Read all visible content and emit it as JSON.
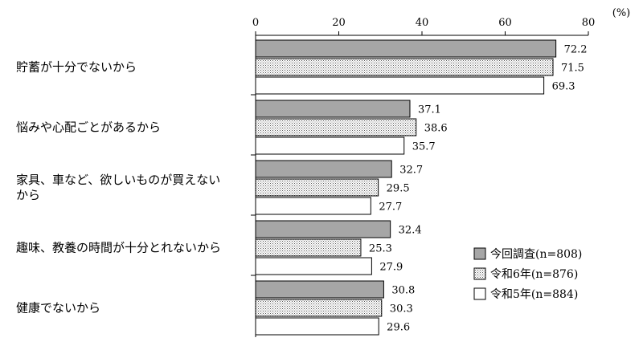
{
  "chart_data": {
    "type": "bar",
    "orientation": "horizontal",
    "unit": "(%)",
    "xlim": [
      0,
      80
    ],
    "xticks": [
      0,
      20,
      40,
      60,
      80
    ],
    "categories": [
      [
        "貯蓄が十分でないから"
      ],
      [
        "悩みや心配ごとがあるから"
      ],
      [
        "家具、車など、欲しいものが買えない",
        "から"
      ],
      [
        "趣味、教養の時間が十分とれないから"
      ],
      [
        "健康でないから"
      ]
    ],
    "series": [
      {
        "name": "今回調査(n=808)",
        "pattern": "gray",
        "values": [
          72.2,
          37.1,
          32.7,
          32.4,
          30.8
        ],
        "labels": [
          "72.2",
          "37.1",
          "32.7",
          "32.4",
          "30.8"
        ]
      },
      {
        "name": "令和6年(n=876)",
        "pattern": "dotted",
        "values": [
          71.5,
          38.6,
          29.5,
          25.3,
          30.3
        ],
        "labels": [
          "71.5",
          "38.6",
          "29.5",
          "25.3",
          "30.3"
        ]
      },
      {
        "name": "令和5年(n=884)",
        "pattern": "white",
        "values": [
          69.3,
          35.7,
          27.7,
          27.9,
          29.6
        ],
        "labels": [
          "69.3",
          "35.7",
          "27.7",
          "27.9",
          "29.6"
        ]
      }
    ],
    "legend_position": "bottom-right",
    "grid": false
  }
}
